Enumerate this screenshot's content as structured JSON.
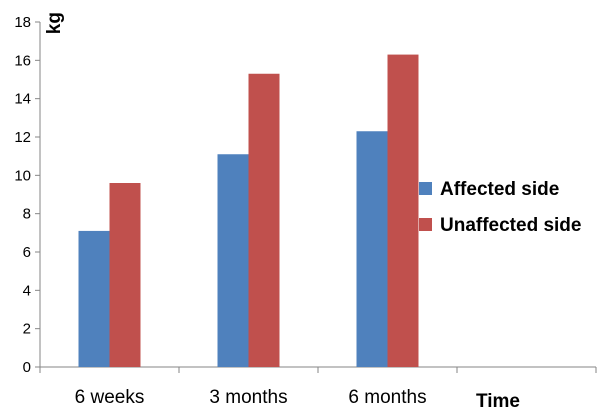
{
  "chart_data": {
    "type": "bar",
    "categories": [
      "6 weeks",
      "3 months",
      "6 months",
      ""
    ],
    "series": [
      {
        "name": "Affected side",
        "color": "#4F81BD",
        "values": [
          7.1,
          11.1,
          12.3,
          null
        ]
      },
      {
        "name": "Unaffected side",
        "color": "#C0504D",
        "values": [
          9.6,
          15.3,
          16.3,
          null
        ]
      }
    ],
    "title": "",
    "xlabel": "Time",
    "ylabel": "kg",
    "ylim": [
      0,
      18
    ],
    "yticks": [
      0,
      2,
      4,
      6,
      8,
      10,
      12,
      14,
      16,
      18
    ],
    "grid": false,
    "legend": "right"
  }
}
